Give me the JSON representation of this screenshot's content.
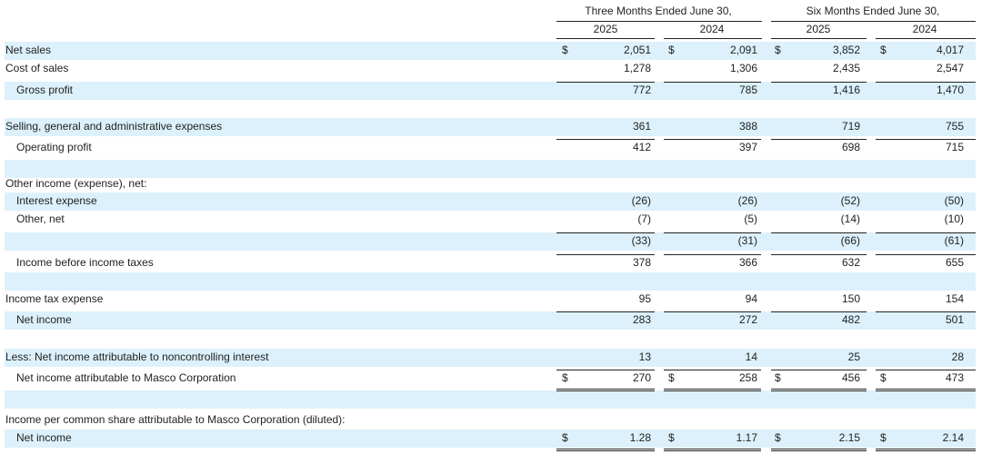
{
  "header": {
    "periods": [
      "Three Months Ended June 30,",
      "Six Months Ended June 30,"
    ],
    "years": [
      "2025",
      "2024",
      "2025",
      "2024"
    ]
  },
  "table": {
    "rows": [
      {
        "label": "Net sales",
        "cells": [
          {
            "symbol": "$",
            "value": "2,051"
          },
          {
            "symbol": "$",
            "value": "2,091"
          },
          {
            "symbol": "$",
            "value": "3,852"
          },
          {
            "symbol": "$",
            "value": "4,017"
          }
        ]
      },
      {
        "label": "Cost of sales",
        "cells": [
          {
            "value": "1,278"
          },
          {
            "value": "1,306"
          },
          {
            "value": "2,435"
          },
          {
            "value": "2,547"
          }
        ]
      },
      {
        "label": "Gross profit",
        "cells": [
          {
            "value": "772"
          },
          {
            "value": "785"
          },
          {
            "value": "1,416"
          },
          {
            "value": "1,470"
          }
        ]
      },
      {
        "label": "Selling, general and administrative expenses",
        "cells": [
          {
            "value": "361"
          },
          {
            "value": "388"
          },
          {
            "value": "719"
          },
          {
            "value": "755"
          }
        ]
      },
      {
        "label": "Operating profit",
        "cells": [
          {
            "value": "412"
          },
          {
            "value": "397"
          },
          {
            "value": "698"
          },
          {
            "value": "715"
          }
        ]
      },
      {
        "label": "Other income (expense), net:"
      },
      {
        "label": "Interest expense",
        "cells": [
          {
            "value": "(26)"
          },
          {
            "value": "(26)"
          },
          {
            "value": "(52)"
          },
          {
            "value": "(50)"
          }
        ]
      },
      {
        "label": "Other, net",
        "cells": [
          {
            "value": "(7)"
          },
          {
            "value": "(5)"
          },
          {
            "value": "(14)"
          },
          {
            "value": "(10)"
          }
        ]
      },
      {
        "cells": [
          {
            "value": "(33)"
          },
          {
            "value": "(31)"
          },
          {
            "value": "(66)"
          },
          {
            "value": "(61)"
          }
        ]
      },
      {
        "label": "Income before income taxes",
        "cells": [
          {
            "value": "378"
          },
          {
            "value": "366"
          },
          {
            "value": "632"
          },
          {
            "value": "655"
          }
        ]
      },
      {
        "label": "Income tax expense",
        "cells": [
          {
            "value": "95"
          },
          {
            "value": "94"
          },
          {
            "value": "150"
          },
          {
            "value": "154"
          }
        ]
      },
      {
        "label": "Net income",
        "cells": [
          {
            "value": "283"
          },
          {
            "value": "272"
          },
          {
            "value": "482"
          },
          {
            "value": "501"
          }
        ]
      },
      {
        "label": "Less: Net income attributable to noncontrolling interest",
        "cells": [
          {
            "value": "13"
          },
          {
            "value": "14"
          },
          {
            "value": "25"
          },
          {
            "value": "28"
          }
        ]
      },
      {
        "label": "Net income attributable to Masco Corporation",
        "cells": [
          {
            "symbol": "$",
            "value": "270"
          },
          {
            "symbol": "$",
            "value": "258"
          },
          {
            "symbol": "$",
            "value": "456"
          },
          {
            "symbol": "$",
            "value": "473"
          }
        ]
      },
      {
        "label": "Income per common share attributable to Masco Corporation (diluted):"
      },
      {
        "label": "Net income",
        "cells": [
          {
            "symbol": "$",
            "value": "1.28"
          },
          {
            "symbol": "$",
            "value": "1.17"
          },
          {
            "symbol": "$",
            "value": "2.15"
          },
          {
            "symbol": "$",
            "value": "2.14"
          }
        ]
      }
    ]
  }
}
